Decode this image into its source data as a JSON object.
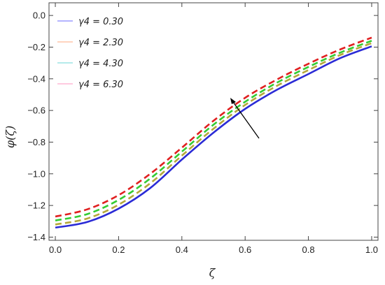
{
  "chart_data": {
    "type": "line",
    "xlabel": "ζ",
    "ylabel": "φ(ζ)",
    "xlim": [
      -0.02,
      1.02
    ],
    "ylim": [
      -1.42,
      0.08
    ],
    "xticks": [
      "0.0",
      "0.2",
      "0.4",
      "0.6",
      "0.8",
      "1.0"
    ],
    "yticks": [
      "0.0",
      "-0.2",
      "-0.4",
      "-0.6",
      "-0.8",
      "-1.0",
      "-1.2",
      "-1.4"
    ],
    "legend_position": "top-left",
    "annotation": "arrow indicating increasing γ4",
    "x": [
      0.0,
      0.1,
      0.2,
      0.3,
      0.4,
      0.5,
      0.6,
      0.7,
      0.8,
      0.9,
      1.0
    ],
    "series": [
      {
        "name": "γ4 = 0.30",
        "color": "#2b2bd6",
        "dash": "solid",
        "values": [
          -1.34,
          -1.305,
          -1.22,
          -1.09,
          -0.91,
          -0.74,
          -0.59,
          -0.47,
          -0.37,
          -0.27,
          -0.195
        ]
      },
      {
        "name": "γ4 = 2.30",
        "color": "#b5a83a",
        "dash": "dashed",
        "values": [
          -1.32,
          -1.283,
          -1.195,
          -1.06,
          -0.885,
          -0.715,
          -0.565,
          -0.445,
          -0.345,
          -0.25,
          -0.175
        ]
      },
      {
        "name": "γ4 = 4.30",
        "color": "#33cc33",
        "dash": "dashed",
        "values": [
          -1.295,
          -1.255,
          -1.165,
          -1.03,
          -0.86,
          -0.69,
          -0.545,
          -0.425,
          -0.325,
          -0.235,
          -0.16
        ]
      },
      {
        "name": "γ4 = 6.30",
        "color": "#e02020",
        "dash": "dashed",
        "values": [
          -1.27,
          -1.225,
          -1.135,
          -1.0,
          -0.835,
          -0.665,
          -0.52,
          -0.405,
          -0.305,
          -0.215,
          -0.14
        ]
      }
    ]
  },
  "legend": {
    "items": [
      {
        "label": "γ4 = 0.30",
        "color": "#8888ff"
      },
      {
        "label": "γ4 = 2.30",
        "color": "#ffbb99"
      },
      {
        "label": "γ4 = 4.30",
        "color": "#88dddd"
      },
      {
        "label": "γ4 = 6.30",
        "color": "#ffaacc"
      }
    ]
  }
}
